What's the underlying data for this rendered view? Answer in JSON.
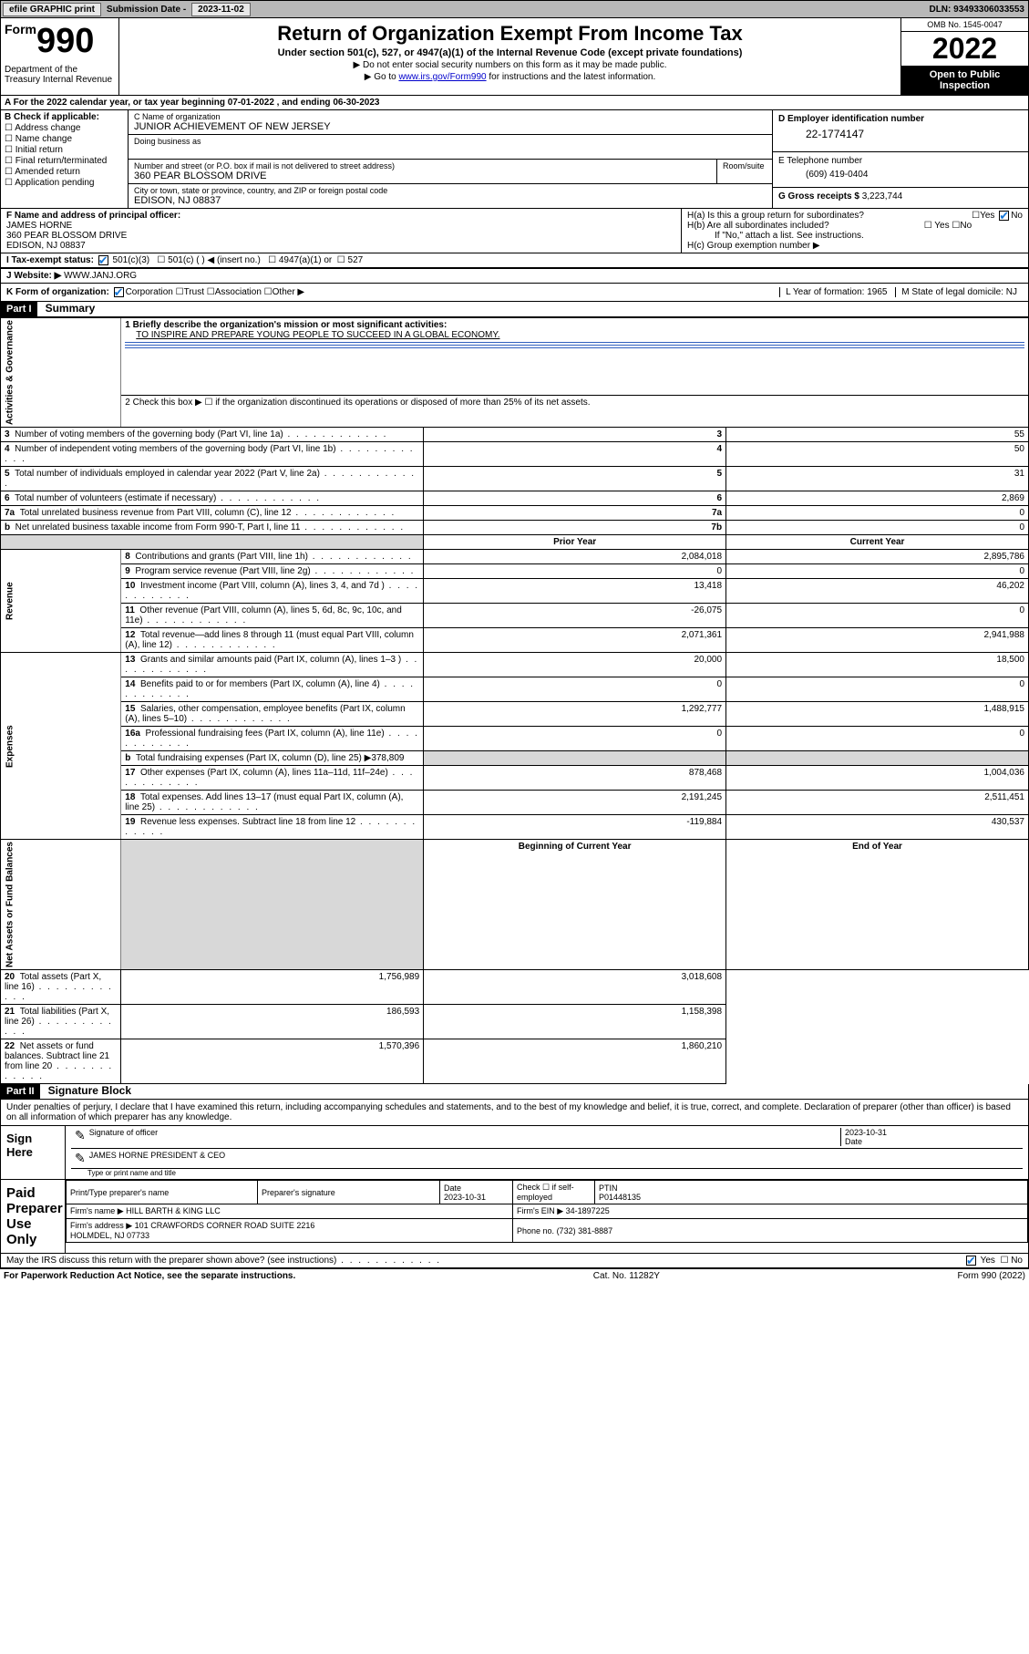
{
  "topbar": {
    "efile": "efile GRAPHIC print",
    "sub_label": "Submission Date - ",
    "sub_date": "2023-11-02",
    "dln": "DLN: 93493306033553"
  },
  "header": {
    "form_small": "Form",
    "form_num": "990",
    "dept": "Department of the Treasury\nInternal Revenue",
    "title": "Return of Organization Exempt From Income Tax",
    "sub": "Under section 501(c), 527, or 4947(a)(1) of the Internal Revenue Code (except private foundations)",
    "arrow1": "▶ Do not enter social security numbers on this form as it may be made public.",
    "arrow2_pre": "▶ Go to ",
    "arrow2_link": "www.irs.gov/Form990",
    "arrow2_post": " for instructions and the latest information.",
    "omb": "OMB No. 1545-0047",
    "year": "2022",
    "open": "Open to Public Inspection"
  },
  "row_a": "A For the 2022 calendar year, or tax year beginning 07-01-2022    , and ending 06-30-2023",
  "section_b": {
    "label": "B Check if applicable:",
    "items": [
      "Address change",
      "Name change",
      "Initial return",
      "Final return/terminated",
      "Amended return",
      "Application pending"
    ]
  },
  "section_c": {
    "name_label": "C Name of organization",
    "name": "JUNIOR ACHIEVEMENT OF NEW JERSEY",
    "dba_label": "Doing business as",
    "street_label": "Number and street (or P.O. box if mail is not delivered to street address)",
    "room_label": "Room/suite",
    "street": "360 PEAR BLOSSOM DRIVE",
    "city_label": "City or town, state or province, country, and ZIP or foreign postal code",
    "city": "EDISON, NJ  08837"
  },
  "section_d": {
    "label": "D Employer identification number",
    "ein": "22-1774147"
  },
  "section_e": {
    "label": "E Telephone number",
    "phone": "(609) 419-0404"
  },
  "section_g": {
    "label": "G Gross receipts $",
    "val": "3,223,744"
  },
  "section_f": {
    "label": "F Name and address of principal officer:",
    "name": "JAMES HORNE",
    "addr1": "360 PEAR BLOSSOM DRIVE",
    "addr2": "EDISON, NJ  08837"
  },
  "section_h": {
    "a": "H(a)  Is this a group return for subordinates?",
    "b": "H(b)  Are all subordinates included?",
    "b_note": "If \"No,\" attach a list. See instructions.",
    "c": "H(c)  Group exemption number ▶"
  },
  "section_i": {
    "label": "I   Tax-exempt status:",
    "opts": [
      "501(c)(3)",
      "501(c) (  ) ◀ (insert no.)",
      "4947(a)(1) or",
      "527"
    ]
  },
  "section_j": {
    "label": "J   Website: ▶",
    "val": "WWW.JANJ.ORG"
  },
  "section_k": {
    "label": "K Form of organization:",
    "opts": [
      "Corporation",
      "Trust",
      "Association",
      "Other ▶"
    ],
    "year_label": "L Year of formation: ",
    "year": "1965",
    "state_label": "M State of legal domicile: ",
    "state": "NJ"
  },
  "part1": {
    "hdr": "Part I",
    "title": "Summary",
    "line1_label": "1  Briefly describe the organization's mission or most significant activities:",
    "line1_val": "TO INSPIRE AND PREPARE YOUNG PEOPLE TO SUCCEED IN A GLOBAL ECONOMY.",
    "line2": "2   Check this box ▶ ☐  if the organization discontinued its operations or disposed of more than 25% of its net assets.",
    "side_gov": "Activities & Governance",
    "side_rev": "Revenue",
    "side_exp": "Expenses",
    "side_net": "Net Assets or Fund Balances",
    "col_prior": "Prior Year",
    "col_curr": "Current Year",
    "col_begin": "Beginning of Current Year",
    "col_end": "End of Year",
    "rows_gov": [
      {
        "n": "3",
        "t": "Number of voting members of the governing body (Part VI, line 1a)",
        "box": "3",
        "v": "55"
      },
      {
        "n": "4",
        "t": "Number of independent voting members of the governing body (Part VI, line 1b)",
        "box": "4",
        "v": "50"
      },
      {
        "n": "5",
        "t": "Total number of individuals employed in calendar year 2022 (Part V, line 2a)",
        "box": "5",
        "v": "31"
      },
      {
        "n": "6",
        "t": "Total number of volunteers (estimate if necessary)",
        "box": "6",
        "v": "2,869"
      },
      {
        "n": "7a",
        "t": "Total unrelated business revenue from Part VIII, column (C), line 12",
        "box": "7a",
        "v": "0"
      },
      {
        "n": " b",
        "t": "Net unrelated business taxable income from Form 990-T, Part I, line 11",
        "box": "7b",
        "v": "0"
      }
    ],
    "rows_rev": [
      {
        "n": "8",
        "t": "Contributions and grants (Part VIII, line 1h)",
        "p": "2,084,018",
        "c": "2,895,786"
      },
      {
        "n": "9",
        "t": "Program service revenue (Part VIII, line 2g)",
        "p": "0",
        "c": "0"
      },
      {
        "n": "10",
        "t": "Investment income (Part VIII, column (A), lines 3, 4, and 7d )",
        "p": "13,418",
        "c": "46,202"
      },
      {
        "n": "11",
        "t": "Other revenue (Part VIII, column (A), lines 5, 6d, 8c, 9c, 10c, and 11e)",
        "p": "-26,075",
        "c": "0"
      },
      {
        "n": "12",
        "t": "Total revenue—add lines 8 through 11 (must equal Part VIII, column (A), line 12)",
        "p": "2,071,361",
        "c": "2,941,988"
      }
    ],
    "rows_exp": [
      {
        "n": "13",
        "t": "Grants and similar amounts paid (Part IX, column (A), lines 1–3 )",
        "p": "20,000",
        "c": "18,500"
      },
      {
        "n": "14",
        "t": "Benefits paid to or for members (Part IX, column (A), line 4)",
        "p": "0",
        "c": "0"
      },
      {
        "n": "15",
        "t": "Salaries, other compensation, employee benefits (Part IX, column (A), lines 5–10)",
        "p": "1,292,777",
        "c": "1,488,915"
      },
      {
        "n": "16a",
        "t": "Professional fundraising fees (Part IX, column (A), line 11e)",
        "p": "0",
        "c": "0"
      },
      {
        "n": " b",
        "t": "Total fundraising expenses (Part IX, column (D), line 25) ▶378,809",
        "p": "",
        "c": "",
        "shade": true
      },
      {
        "n": "17",
        "t": "Other expenses (Part IX, column (A), lines 11a–11d, 11f–24e)",
        "p": "878,468",
        "c": "1,004,036"
      },
      {
        "n": "18",
        "t": "Total expenses. Add lines 13–17 (must equal Part IX, column (A), line 25)",
        "p": "2,191,245",
        "c": "2,511,451"
      },
      {
        "n": "19",
        "t": "Revenue less expenses. Subtract line 18 from line 12",
        "p": "-119,884",
        "c": "430,537"
      }
    ],
    "rows_net": [
      {
        "n": "20",
        "t": "Total assets (Part X, line 16)",
        "p": "1,756,989",
        "c": "3,018,608"
      },
      {
        "n": "21",
        "t": "Total liabilities (Part X, line 26)",
        "p": "186,593",
        "c": "1,158,398"
      },
      {
        "n": "22",
        "t": "Net assets or fund balances. Subtract line 21 from line 20",
        "p": "1,570,396",
        "c": "1,860,210"
      }
    ]
  },
  "part2": {
    "hdr": "Part II",
    "title": "Signature Block",
    "decl": "Under penalties of perjury, I declare that I have examined this return, including accompanying schedules and statements, and to the best of my knowledge and belief, it is true, correct, and complete. Declaration of preparer (other than officer) is based on all information of which preparer has any knowledge.",
    "sign_here": "Sign Here",
    "sig_officer": "Signature of officer",
    "sig_date": "2023-10-31",
    "date_label": "Date",
    "officer_name": "JAMES HORNE PRESIDENT & CEO",
    "name_label": "Type or print name and title",
    "paid": "Paid Preparer Use Only",
    "prep_name_label": "Print/Type preparer's name",
    "prep_sig_label": "Preparer's signature",
    "prep_date_label": "Date",
    "prep_date": "2023-10-31",
    "check_label": "Check ☐ if self-employed",
    "ptin_label": "PTIN",
    "ptin": "P01448135",
    "firm_name_label": "Firm's name    ▶",
    "firm_name": "HILL BARTH & KING LLC",
    "firm_ein_label": "Firm's EIN ▶",
    "firm_ein": "34-1897225",
    "firm_addr_label": "Firm's address ▶",
    "firm_addr": "101 CRAWFORDS CORNER ROAD SUITE 2216\nHOLMDEL, NJ  07733",
    "phone_label": "Phone no.",
    "phone": "(732) 381-8887",
    "discuss": "May the IRS discuss this return with the preparer shown above? (see instructions)",
    "yes": "Yes",
    "no": "No"
  },
  "footer": {
    "left": "For Paperwork Reduction Act Notice, see the separate instructions.",
    "mid": "Cat. No. 11282Y",
    "right": "Form 990 (2022)"
  },
  "colors": {
    "link": "#0000cc",
    "check": "#1878d8",
    "rule": "#3060c0"
  }
}
